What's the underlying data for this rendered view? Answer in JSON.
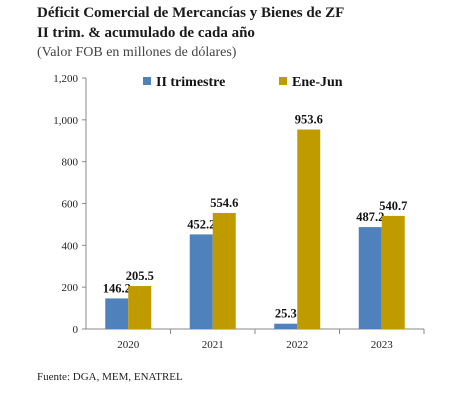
{
  "header": {
    "title_line1": "Déficit Comercial de Mercancías y Bienes de ZF",
    "title_line2": "II trim. & acumulado de cada año",
    "subtitle": "(Valor FOB en millones de dólares)"
  },
  "footer": {
    "source": "Fuente: DGA, MEM, ENATREL"
  },
  "chart_data": {
    "type": "bar",
    "categories": [
      "2020",
      "2021",
      "2022",
      "2023"
    ],
    "series": [
      {
        "name": "II trimestre",
        "values": [
          146.2,
          452.2,
          25.3,
          487.2
        ],
        "labels": [
          "146.2",
          "452.2",
          "25.3",
          "487.2"
        ],
        "color": "#4f81bd"
      },
      {
        "name": "Ene-Jun",
        "values": [
          205.5,
          554.6,
          953.6,
          540.7
        ],
        "labels": [
          "205.5",
          "554.6",
          "953.6",
          "540.7"
        ],
        "color": "#c09b00"
      }
    ],
    "ylim": [
      0,
      1200
    ],
    "yticks": [
      0,
      200,
      400,
      600,
      800,
      1000,
      1200
    ],
    "ytick_labels": [
      "0",
      "200",
      "400",
      "600",
      "800",
      "1,000",
      "1,200"
    ],
    "legend": "top",
    "grid": false
  }
}
